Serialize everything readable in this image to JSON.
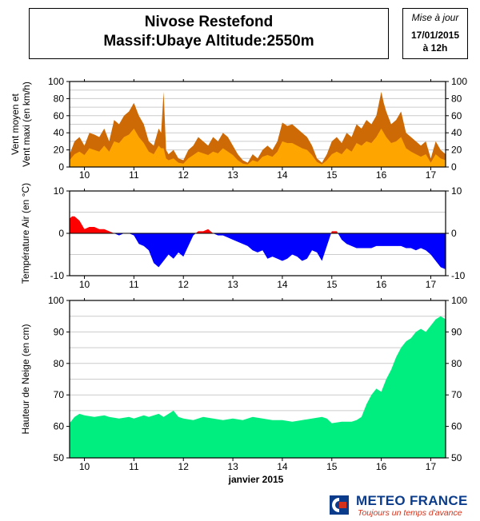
{
  "header": {
    "title_line1": "Nivose Restefond",
    "title_line2": "Massif:Ubaye Altitude:2550m",
    "update_label": "Mise à jour",
    "update_date": "17/01/2015",
    "update_time": "à 12h"
  },
  "brand": {
    "name": "METEO FRANCE",
    "slogan": "Toujours un temps d'avance",
    "colors": {
      "blue": "#0b3c8c",
      "red": "#d6311a"
    }
  },
  "chart_data": [
    {
      "type": "area",
      "ylabel_line1": "Vent moyen et",
      "ylabel_line2": "Vent maxi (en km/h)",
      "ylim": [
        0,
        100
      ],
      "yticks": [
        0,
        20,
        40,
        60,
        80,
        100
      ],
      "xlim": [
        9.7,
        17.3
      ],
      "xticks": [
        "10",
        "11",
        "12",
        "13",
        "14",
        "15",
        "16",
        "17"
      ],
      "grid": true,
      "colors": {
        "maxi": "#cd6a06",
        "moyen": "#ffa500"
      },
      "series": [
        {
          "key": "maxi",
          "x": [
            9.7,
            9.8,
            9.9,
            10.0,
            10.1,
            10.2,
            10.3,
            10.4,
            10.5,
            10.6,
            10.7,
            10.8,
            10.9,
            11.0,
            11.1,
            11.2,
            11.3,
            11.4,
            11.5,
            11.55,
            11.6,
            11.65,
            11.7,
            11.8,
            11.9,
            12.0,
            12.1,
            12.2,
            12.3,
            12.4,
            12.5,
            12.6,
            12.7,
            12.8,
            12.9,
            13.0,
            13.1,
            13.2,
            13.3,
            13.4,
            13.5,
            13.6,
            13.7,
            13.8,
            13.9,
            14.0,
            14.1,
            14.2,
            14.3,
            14.4,
            14.5,
            14.6,
            14.7,
            14.8,
            14.9,
            15.0,
            15.1,
            15.2,
            15.3,
            15.4,
            15.5,
            15.6,
            15.7,
            15.8,
            15.9,
            16.0,
            16.05,
            16.1,
            16.2,
            16.3,
            16.4,
            16.5,
            16.6,
            16.7,
            16.8,
            16.9,
            17.0,
            17.1,
            17.2,
            17.3
          ],
          "values": [
            15,
            30,
            35,
            25,
            40,
            38,
            35,
            45,
            30,
            55,
            50,
            60,
            65,
            75,
            60,
            50,
            30,
            25,
            45,
            40,
            88,
            20,
            15,
            20,
            10,
            8,
            20,
            25,
            35,
            30,
            25,
            35,
            30,
            40,
            35,
            25,
            15,
            8,
            5,
            15,
            10,
            20,
            25,
            20,
            30,
            52,
            48,
            50,
            45,
            40,
            35,
            25,
            10,
            5,
            15,
            30,
            35,
            28,
            40,
            35,
            50,
            45,
            55,
            50,
            60,
            88,
            75,
            65,
            50,
            55,
            65,
            40,
            35,
            30,
            25,
            30,
            10,
            30,
            20,
            15
          ]
        },
        {
          "key": "moyen",
          "x": [
            9.7,
            9.8,
            9.9,
            10.0,
            10.1,
            10.2,
            10.3,
            10.4,
            10.5,
            10.6,
            10.7,
            10.8,
            10.9,
            11.0,
            11.1,
            11.2,
            11.3,
            11.4,
            11.5,
            11.55,
            11.6,
            11.65,
            11.7,
            11.8,
            11.9,
            12.0,
            12.1,
            12.2,
            12.3,
            12.4,
            12.5,
            12.6,
            12.7,
            12.8,
            12.9,
            13.0,
            13.1,
            13.2,
            13.3,
            13.4,
            13.5,
            13.6,
            13.7,
            13.8,
            13.9,
            14.0,
            14.1,
            14.2,
            14.3,
            14.4,
            14.5,
            14.6,
            14.7,
            14.8,
            14.9,
            15.0,
            15.1,
            15.2,
            15.3,
            15.4,
            15.5,
            15.6,
            15.7,
            15.8,
            15.9,
            16.0,
            16.05,
            16.1,
            16.2,
            16.3,
            16.4,
            16.5,
            16.6,
            16.7,
            16.8,
            16.9,
            17.0,
            17.1,
            17.2,
            17.3
          ],
          "values": [
            8,
            15,
            18,
            14,
            22,
            20,
            18,
            25,
            18,
            30,
            28,
            35,
            38,
            45,
            35,
            28,
            18,
            15,
            25,
            22,
            22,
            10,
            8,
            10,
            5,
            4,
            10,
            14,
            18,
            16,
            14,
            18,
            16,
            22,
            18,
            14,
            8,
            4,
            3,
            8,
            6,
            12,
            14,
            12,
            18,
            30,
            28,
            28,
            25,
            22,
            20,
            14,
            6,
            3,
            8,
            15,
            18,
            15,
            22,
            18,
            28,
            25,
            30,
            28,
            35,
            45,
            40,
            35,
            28,
            30,
            35,
            22,
            18,
            15,
            12,
            15,
            5,
            15,
            10,
            8
          ]
        }
      ]
    },
    {
      "type": "area",
      "ylabel": "Température Air (en °C)",
      "ylim": [
        -10,
        10
      ],
      "yticks": [
        -10,
        0,
        10
      ],
      "xlim": [
        9.7,
        17.3
      ],
      "xticks": [
        "10",
        "11",
        "12",
        "13",
        "14",
        "15",
        "16",
        "17"
      ],
      "grid": true,
      "colors": {
        "positive": "#ff0000",
        "negative": "#0000ff"
      },
      "series": [
        {
          "key": "temperature",
          "x": [
            9.7,
            9.75,
            9.8,
            9.9,
            10.0,
            10.1,
            10.2,
            10.3,
            10.4,
            10.5,
            10.6,
            10.7,
            10.8,
            10.9,
            11.0,
            11.1,
            11.2,
            11.3,
            11.4,
            11.5,
            11.6,
            11.7,
            11.8,
            11.9,
            12.0,
            12.1,
            12.2,
            12.3,
            12.4,
            12.5,
            12.6,
            12.7,
            12.8,
            12.9,
            13.0,
            13.1,
            13.2,
            13.3,
            13.4,
            13.5,
            13.6,
            13.7,
            13.8,
            13.9,
            14.0,
            14.1,
            14.2,
            14.3,
            14.4,
            14.5,
            14.6,
            14.7,
            14.8,
            14.9,
            15.0,
            15.1,
            15.2,
            15.3,
            15.4,
            15.5,
            15.6,
            15.7,
            15.8,
            15.9,
            16.0,
            16.1,
            16.2,
            16.3,
            16.4,
            16.5,
            16.6,
            16.7,
            16.8,
            16.9,
            17.0,
            17.1,
            17.2,
            17.3
          ],
          "values": [
            3.5,
            4,
            4,
            3,
            1,
            1.5,
            1.5,
            1,
            1,
            0.5,
            0,
            -0.5,
            0,
            0,
            -0.5,
            -2.5,
            -3,
            -4,
            -7,
            -8,
            -6.5,
            -5,
            -6,
            -4.5,
            -5.5,
            -3,
            -0.5,
            0.5,
            0.5,
            1,
            0,
            -0.5,
            -0.5,
            -1,
            -1.5,
            -2,
            -2.5,
            -3,
            -4,
            -4.5,
            -4,
            -6,
            -5.5,
            -6,
            -6.5,
            -6,
            -5,
            -5.5,
            -6.5,
            -6,
            -4,
            -4.5,
            -6.5,
            -3,
            0.5,
            0.5,
            -1.5,
            -2.5,
            -3,
            -3.5,
            -3.5,
            -3.5,
            -3.5,
            -3,
            -3,
            -3,
            -3,
            -3,
            -3,
            -3.5,
            -3.5,
            -4,
            -3.5,
            -4,
            -5,
            -6.5,
            -8,
            -8.5
          ]
        }
      ]
    },
    {
      "type": "area",
      "ylabel": "Hauteur de Neige (en cm)",
      "ylim": [
        50,
        100
      ],
      "yticks": [
        50,
        60,
        70,
        80,
        90,
        100
      ],
      "xlim": [
        9.7,
        17.3
      ],
      "xticks": [
        "10",
        "11",
        "12",
        "13",
        "14",
        "15",
        "16",
        "17"
      ],
      "xlabel": "janvier 2015",
      "grid": true,
      "colors": {
        "fill": "#00ee80"
      },
      "series": [
        {
          "key": "snow",
          "x": [
            9.7,
            9.8,
            9.9,
            10.0,
            10.2,
            10.4,
            10.5,
            10.7,
            10.9,
            11.0,
            11.2,
            11.3,
            11.5,
            11.6,
            11.7,
            11.8,
            11.9,
            12.0,
            12.2,
            12.4,
            12.6,
            12.8,
            13.0,
            13.2,
            13.4,
            13.6,
            13.8,
            14.0,
            14.2,
            14.4,
            14.6,
            14.8,
            14.9,
            15.0,
            15.2,
            15.4,
            15.5,
            15.6,
            15.7,
            15.8,
            15.9,
            16.0,
            16.1,
            16.2,
            16.3,
            16.4,
            16.5,
            16.6,
            16.7,
            16.8,
            16.9,
            17.0,
            17.1,
            17.2,
            17.3
          ],
          "values": [
            61,
            63,
            64,
            63.5,
            63,
            63.5,
            63,
            62.5,
            63,
            62.5,
            63.5,
            63,
            64,
            63,
            64,
            65,
            63,
            62.5,
            62,
            63,
            62.5,
            62,
            62.5,
            62,
            63,
            62.5,
            62,
            62,
            61.5,
            62,
            62.5,
            63,
            62.5,
            61,
            61.5,
            61.5,
            62,
            63,
            67,
            70,
            72,
            71,
            75,
            78,
            82,
            85,
            87,
            88,
            90,
            91,
            90,
            92,
            94,
            95,
            94
          ]
        }
      ]
    }
  ]
}
